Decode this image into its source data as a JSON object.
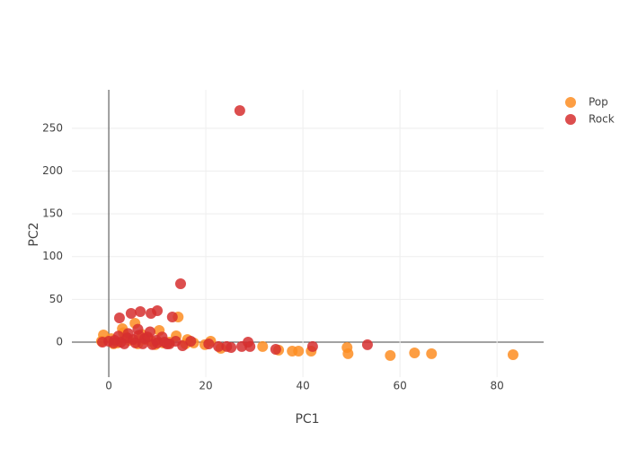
{
  "chart_data": {
    "type": "scatter",
    "x_label": "PC1",
    "y_label": "PC2",
    "xlim": [
      -7.6,
      89.6
    ],
    "ylim": [
      -41,
      295
    ],
    "xticks": [
      0,
      20,
      40,
      60,
      80
    ],
    "yticks": [
      0,
      50,
      100,
      150,
      200,
      250
    ],
    "grid": true,
    "legend": "top-right",
    "series": [
      {
        "name": "Pop",
        "color": "#fd8d22",
        "x": [
          83.3,
          66.5,
          63,
          58,
          49.3,
          49.1,
          41.7,
          39.1,
          37.8,
          35,
          31.7,
          23.1,
          14.3,
          5.4,
          2.8,
          -1.1,
          13.9,
          10.4,
          -1.5,
          0.5,
          1.8,
          3.5,
          4.2,
          6,
          7.5,
          8.8,
          9.6,
          11.2,
          12.5,
          15.8,
          17.5,
          19.8,
          21,
          6.8,
          3,
          1,
          16.2,
          8
        ],
        "values": [
          -14.7,
          -13.6,
          -12.6,
          -15.7,
          -13.6,
          -6.3,
          -10.5,
          -10.5,
          -10.5,
          -9.4,
          -5.2,
          -7.3,
          29.4,
          22,
          15.7,
          8.4,
          7.3,
          13.6,
          1,
          4,
          -1,
          6,
          2,
          -2,
          3,
          1,
          -3,
          -1,
          0,
          -2,
          -1,
          -3,
          1,
          9,
          11,
          -2,
          3,
          5
        ]
      },
      {
        "name": "Rock",
        "color": "#d62f2f",
        "x": [
          27,
          14.8,
          13.1,
          10,
          6.5,
          8.7,
          4.6,
          2.2,
          53.3,
          42,
          34.4,
          28.7,
          29.1,
          27.4,
          25.2,
          24.3,
          22.6,
          20.6,
          16.9,
          15.2,
          12,
          -1.3,
          0,
          1.2,
          2.5,
          3.8,
          5,
          6.2,
          7.4,
          8.5,
          9.8,
          11,
          12.5,
          13.8,
          2,
          4,
          6,
          8,
          10,
          1,
          3.2,
          5.5,
          7,
          9,
          11.5
        ],
        "values": [
          270.7,
          68.2,
          29.4,
          36.7,
          35.7,
          33.6,
          33.6,
          28.3,
          -3.1,
          -5.2,
          -8.4,
          0,
          -5.2,
          -5.2,
          -6.3,
          -5.2,
          -5.2,
          -2.1,
          1,
          -4.2,
          -2.1,
          0,
          1,
          2,
          0,
          5,
          3,
          8,
          4,
          12,
          2,
          6,
          -2,
          1,
          7,
          10,
          15,
          6,
          -1,
          -1,
          -2,
          -1,
          -2,
          -3,
          0
        ]
      }
    ]
  }
}
